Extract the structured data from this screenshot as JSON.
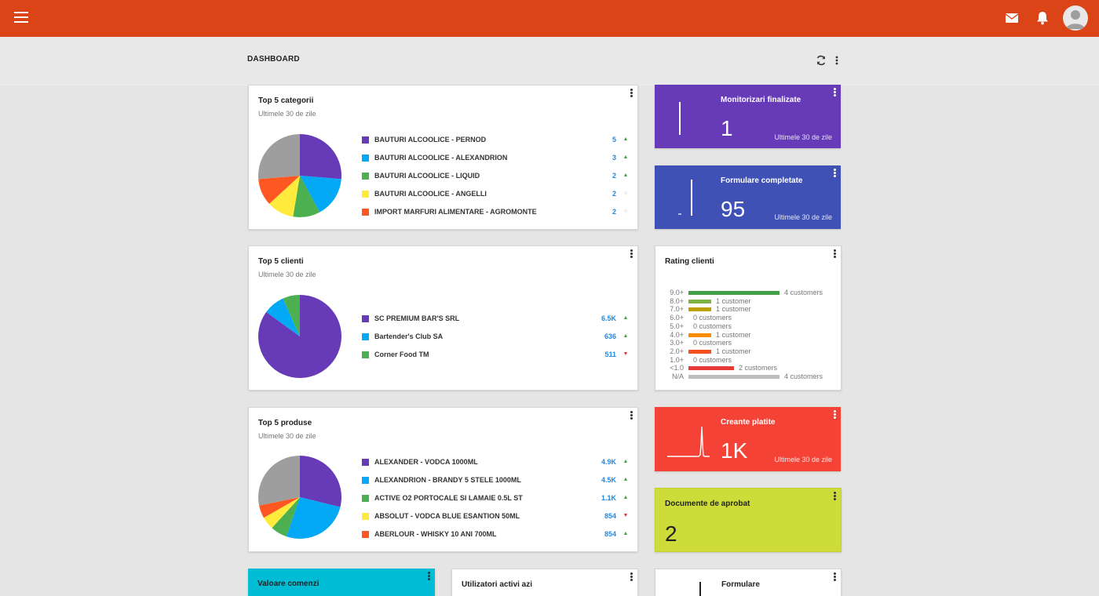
{
  "colors": {
    "topbar": "#da4417",
    "purple": "#673ab7",
    "blue": "#03a9f4",
    "green": "#4caf50",
    "yellow": "#ffeb3b",
    "orange": "#ff5722",
    "grey": "#9e9e9e",
    "value_blue": "#1e88e5"
  },
  "topbar": {
    "menu_icon": "menu-icon",
    "mail_icon": "mail-icon",
    "bell_icon": "bell-icon",
    "avatar_icon": "avatar-icon"
  },
  "header": {
    "title": "DASHBOARD",
    "refresh_icon": "refresh-icon",
    "more_icon": "more-vert-icon"
  },
  "top_categories": {
    "title": "Top 5 categorii",
    "subtitle": "Ultimele 30 de zile",
    "items": [
      {
        "label": "BAUTURI ALCOOLICE - PERNOD",
        "value": "5",
        "trend": "up",
        "color": "#673ab7"
      },
      {
        "label": "BAUTURI ALCOOLICE - ALEXANDRION",
        "value": "3",
        "trend": "up",
        "color": "#03a9f4"
      },
      {
        "label": "BAUTURI ALCOOLICE - LIQUID",
        "value": "2",
        "trend": "up",
        "color": "#4caf50"
      },
      {
        "label": "BAUTURI ALCOOLICE - ANGELLI",
        "value": "2",
        "trend": "flat",
        "color": "#ffeb3b"
      },
      {
        "label": "IMPORT MARFURI ALIMENTARE - AGROMONTE",
        "value": "2",
        "trend": "flat",
        "color": "#ff5722"
      }
    ]
  },
  "top_clients": {
    "title": "Top 5 clienti",
    "subtitle": "Ultimele 30 de zile",
    "items": [
      {
        "label": "SC PREMIUM BAR'S SRL",
        "value": "6.5K",
        "trend": "up",
        "color": "#673ab7"
      },
      {
        "label": "Bartender's Club SA",
        "value": "636",
        "trend": "up",
        "color": "#03a9f4"
      },
      {
        "label": "Corner Food TM",
        "value": "511",
        "trend": "down",
        "color": "#4caf50"
      }
    ]
  },
  "top_products": {
    "title": "Top 5 produse",
    "subtitle": "Ultimele 30 de zile",
    "items": [
      {
        "label": "ALEXANDER - VODCA 1000ML",
        "value": "4.9K",
        "trend": "up",
        "color": "#673ab7"
      },
      {
        "label": "ALEXANDRION - BRANDY 5 STELE 1000ML",
        "value": "4.5K",
        "trend": "up",
        "color": "#03a9f4"
      },
      {
        "label": "ACTIVE O2 PORTOCALE SI LAMAIE 0.5L ST",
        "value": "1.1K",
        "trend": "up",
        "color": "#4caf50"
      },
      {
        "label": "ABSOLUT - VODCA BLUE ESANTION 50ML",
        "value": "854",
        "trend": "down",
        "color": "#ffeb3b"
      },
      {
        "label": "ABERLOUR - WHISKY 10 ANI 700ML",
        "value": "854",
        "trend": "up",
        "color": "#ff5722"
      }
    ]
  },
  "monitorizari": {
    "title": "Monitorizari finalizate",
    "value": "1",
    "period": "Ultimele 30 de zile",
    "color": "#673ab7"
  },
  "formulare_completate": {
    "title": "Formulare completate",
    "value": "95",
    "period": "Ultimele 30 de zile",
    "color": "#3f51b5"
  },
  "rating": {
    "title": "Rating clienti",
    "rows": [
      {
        "label": "9.0+",
        "text": "4 customers",
        "count": 4,
        "color": "#43a047"
      },
      {
        "label": "8.0+",
        "text": "1 customer",
        "count": 1,
        "color": "#7cb342"
      },
      {
        "label": "7.0+",
        "text": "1 customer",
        "count": 1,
        "color": "#c0a000"
      },
      {
        "label": "6.0+",
        "text": "0 customers",
        "count": 0,
        "color": "#cccccc"
      },
      {
        "label": "5.0+",
        "text": "0 customers",
        "count": 0,
        "color": "#cccccc"
      },
      {
        "label": "4.0+",
        "text": "1 customer",
        "count": 1,
        "color": "#fb8c00"
      },
      {
        "label": "3.0+",
        "text": "0 customers",
        "count": 0,
        "color": "#cccccc"
      },
      {
        "label": "2.0+",
        "text": "1 customer",
        "count": 1,
        "color": "#f4511e"
      },
      {
        "label": "1.0+",
        "text": "0 customers",
        "count": 0,
        "color": "#cccccc"
      },
      {
        "label": "<1.0",
        "text": "2 customers",
        "count": 2,
        "color": "#e53935"
      },
      {
        "label": "N/A",
        "text": "4 customers",
        "count": 4,
        "color": "#bdbdbd"
      }
    ]
  },
  "creante": {
    "title": "Creante platite",
    "value": "1K",
    "period": "Ultimele 30 de zile",
    "color": "#f44336"
  },
  "documente": {
    "title": "Documente de aprobat",
    "value": "2",
    "color": "#cddc39"
  },
  "valoare_comenzi": {
    "title": "Valoare comenzi",
    "color": "#00bcd4"
  },
  "utilizatori": {
    "title": "Utilizatori activi azi"
  },
  "formulare": {
    "title": "Formulare"
  }
}
